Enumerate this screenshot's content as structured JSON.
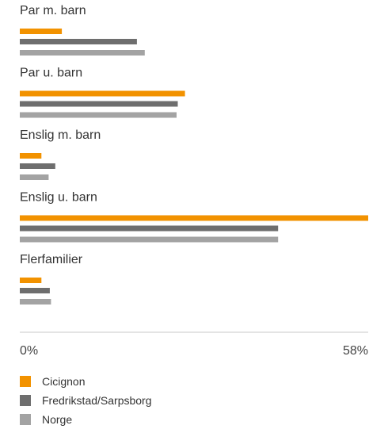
{
  "chart_data": {
    "type": "bar",
    "orientation": "horizontal",
    "categories": [
      "Par m. barn",
      "Par u. barn",
      "Enslig m. barn",
      "Enslig u. barn",
      "Flerfamilier"
    ],
    "series": [
      {
        "name": "Cicignon",
        "color": "#F29200",
        "values": [
          7.0,
          27.5,
          3.6,
          58.0,
          3.6
        ]
      },
      {
        "name": "Fredrikstad/Sarpsborg",
        "color": "#6E6E6E",
        "values": [
          19.5,
          26.3,
          5.9,
          43.0,
          5.0
        ]
      },
      {
        "name": "Norge",
        "color": "#A3A3A3",
        "values": [
          20.8,
          26.1,
          4.8,
          43.0,
          5.2
        ]
      }
    ],
    "xlim": [
      0,
      58
    ],
    "tick_labels": [
      "0%",
      "58%"
    ],
    "grid": false,
    "legend_position": "bottom-left"
  }
}
